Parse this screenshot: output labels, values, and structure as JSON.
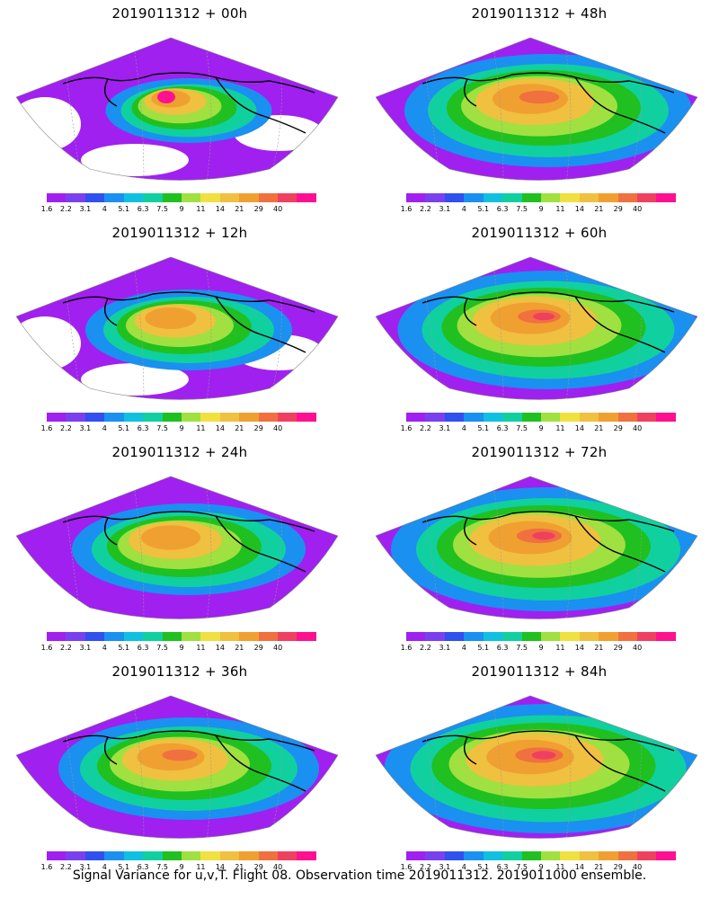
{
  "colorbar": {
    "labels": [
      "1.6",
      "2.2",
      "3.1",
      "4",
      "5.1",
      "6.3",
      "7.5",
      "9",
      "11",
      "14",
      "21",
      "29",
      "40"
    ],
    "colors": [
      "#a020f0",
      "#7a40f0",
      "#3050f0",
      "#1a90f0",
      "#10c0e0",
      "#10d0a0",
      "#20c020",
      "#a0e040",
      "#f0e040",
      "#f0c040",
      "#f0a030",
      "#f07040",
      "#f04060",
      "#ff1090"
    ]
  },
  "panels": [
    {
      "title": "2019011312 + 00h"
    },
    {
      "title": "2019011312 + 48h"
    },
    {
      "title": "2019011312 + 12h"
    },
    {
      "title": "2019011312 + 60h"
    },
    {
      "title": "2019011312 + 24h"
    },
    {
      "title": "2019011312 + 72h"
    },
    {
      "title": "2019011312 + 36h"
    },
    {
      "title": "2019011312 + 84h"
    }
  ],
  "caption": "Signal Variance for u,v,T. Flight 08. Observation time 2019011312. 2019011000 ensemble."
}
